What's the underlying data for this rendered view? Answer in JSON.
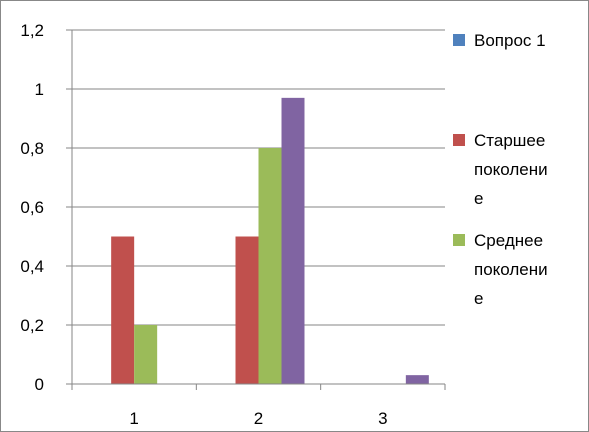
{
  "chart_data": {
    "type": "bar",
    "categories": [
      "1",
      "2",
      "3"
    ],
    "ylim": [
      0,
      1.2
    ],
    "yticks": [
      "0",
      "0,2",
      "0,4",
      "0,6",
      "0,8",
      "1",
      "1,2"
    ],
    "grid": true,
    "legend_position": "right",
    "series": [
      {
        "name": "Вопрос 1",
        "legend_lines": [
          "Вопрос 1"
        ],
        "color": "#4f81bd",
        "values": [
          0,
          0,
          0
        ]
      },
      {
        "name": "Старшее поколение",
        "legend_lines": [
          "Старшее",
          "поколени",
          "е"
        ],
        "color": "#c0504d",
        "values": [
          0.5,
          0.5,
          0
        ]
      },
      {
        "name": "Среднее поколение",
        "legend_lines": [
          "Среднее",
          "поколени",
          "е"
        ],
        "color": "#9bbb59",
        "values": [
          0.2,
          0.8,
          0
        ]
      },
      {
        "color": "#8064a2",
        "values": [
          0,
          0.97,
          0.03
        ]
      }
    ]
  }
}
